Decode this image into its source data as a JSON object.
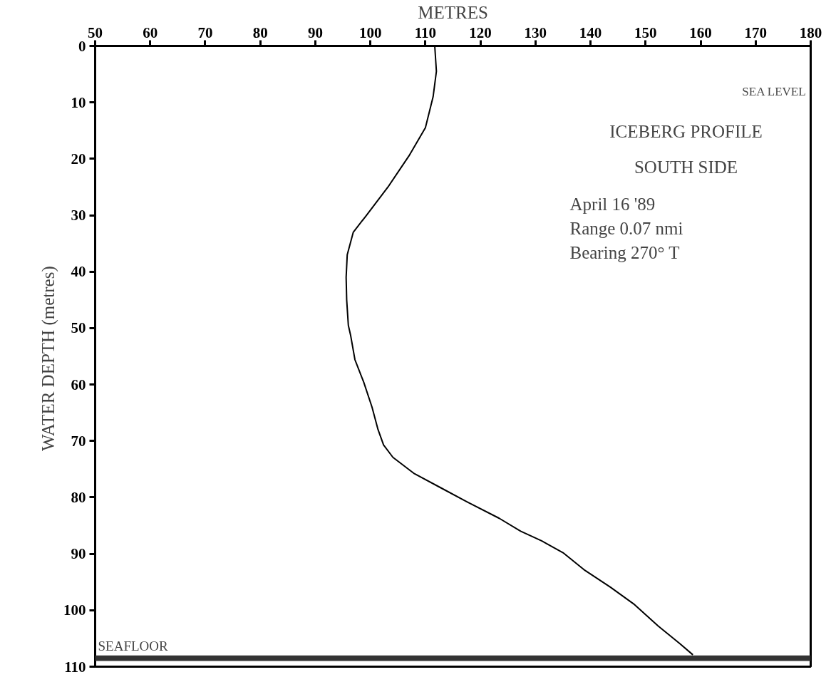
{
  "chart_data": {
    "type": "line",
    "title": "ICEBERG PROFILE",
    "subtitle": "SOUTH SIDE",
    "xlabel": "METRES",
    "ylabel": "WATER DEPTH  (metres)",
    "annotations": [
      "SEA LEVEL",
      "April 16 '89",
      "Range    0.07 nmi",
      "Bearing  270° T"
    ],
    "xlim": [
      50,
      180
    ],
    "xticks": [
      50,
      60,
      70,
      80,
      90,
      100,
      110,
      120,
      130,
      140,
      150,
      160,
      170,
      180
    ],
    "ylim": [
      110,
      0
    ],
    "yticks": [
      0,
      10,
      20,
      30,
      40,
      50,
      60,
      70,
      80,
      90,
      100,
      110
    ],
    "grid": false,
    "marker": "none",
    "line_style": "solid",
    "bands": [
      {
        "axis": "y",
        "from": 108,
        "to": 109,
        "label": "SEAFLOOR",
        "color": "#333333"
      }
    ],
    "series": [
      {
        "color": "#000000",
        "x": [
          111.7,
          112,
          111.4,
          110,
          107,
          103.2,
          99.3,
          96.9,
          95.8,
          95.6,
          95.7,
          96,
          96.4,
          97.2,
          98.8,
          100.3,
          101.4,
          102.4,
          104.1,
          108,
          112.8,
          117.6,
          123.4,
          127.3,
          131.1,
          135,
          138.8,
          143.6,
          148,
          152.3,
          156.2,
          158.6
        ],
        "values": [
          0,
          4.5,
          9,
          14.5,
          19.5,
          25,
          30,
          33,
          37,
          41,
          45,
          49.5,
          51.2,
          55.6,
          59.6,
          64,
          68,
          70.7,
          72.9,
          75.8,
          78.3,
          80.8,
          83.7,
          86,
          87.7,
          89.8,
          92.8,
          95.9,
          99,
          102.8,
          105.9,
          107.9
        ]
      }
    ]
  }
}
